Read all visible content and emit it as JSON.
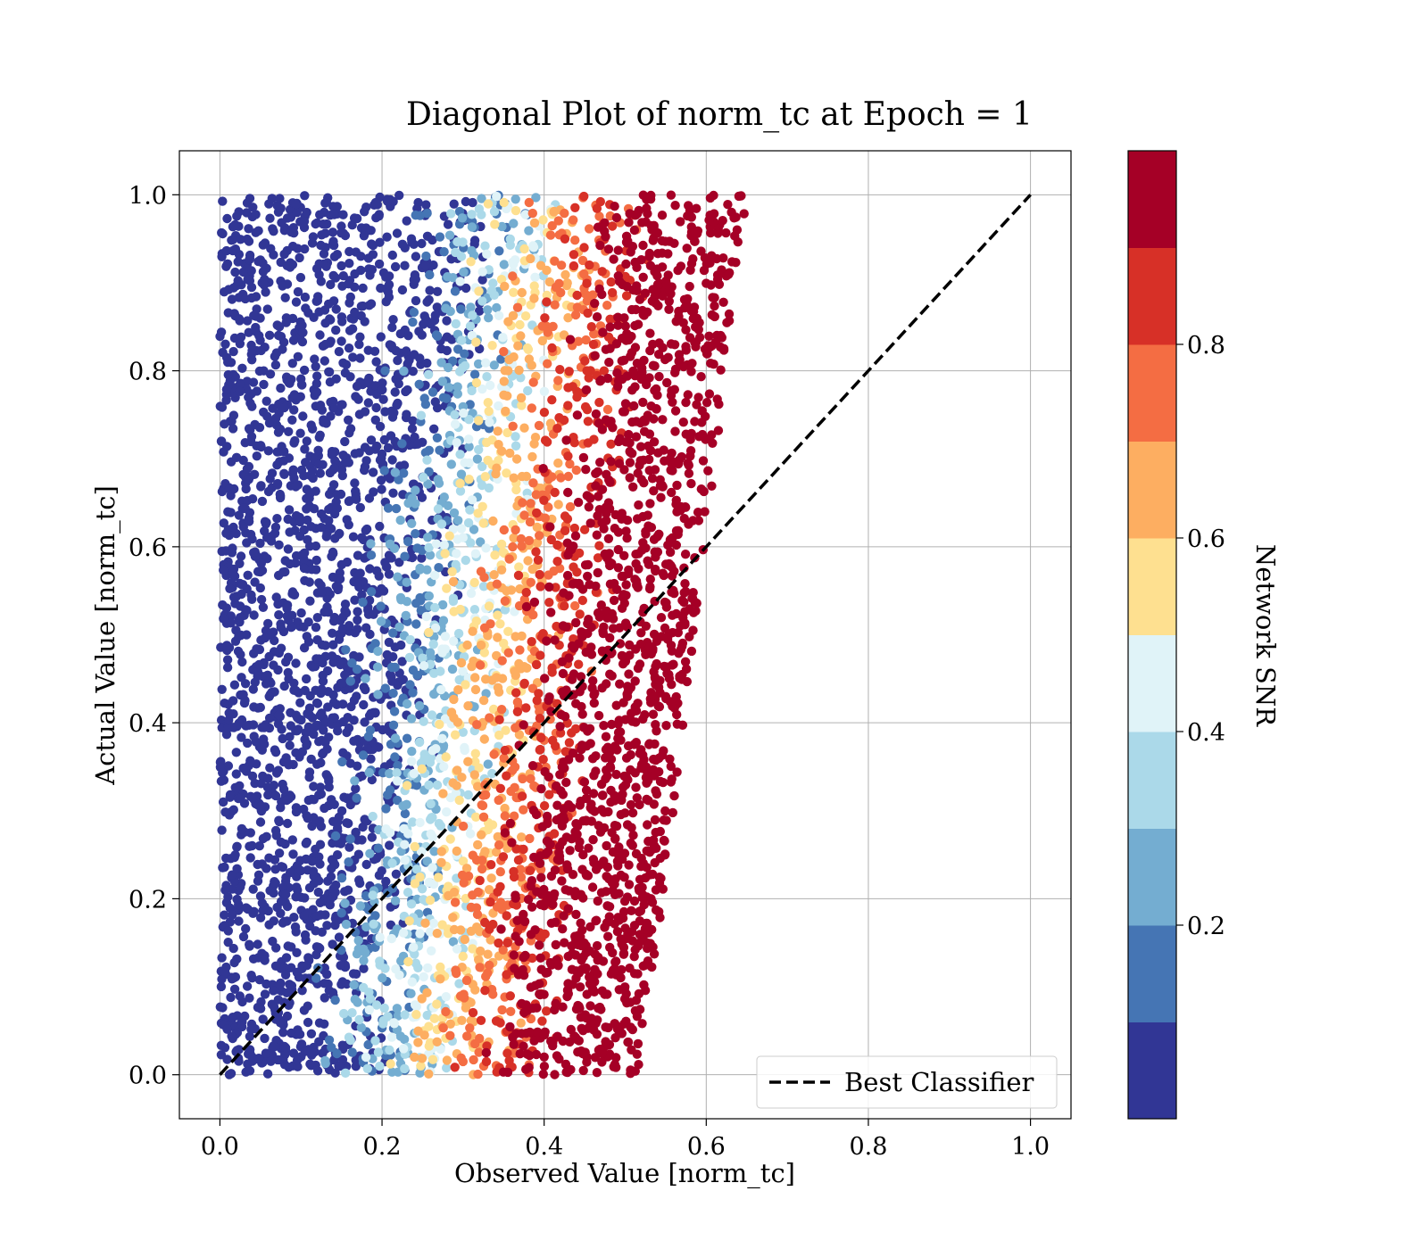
{
  "chart_data": {
    "type": "scatter",
    "title": "Diagonal Plot of norm_tc at Epoch = 1",
    "xlabel": "Observed Value [norm_tc]",
    "ylabel": "Actual Value [norm_tc]",
    "xlim": [
      -0.05,
      1.05
    ],
    "ylim": [
      -0.05,
      1.05
    ],
    "xticks": [
      "0.0",
      "0.2",
      "0.4",
      "0.6",
      "0.8",
      "1.0"
    ],
    "yticks": [
      "0.0",
      "0.2",
      "0.4",
      "0.6",
      "0.8",
      "1.0"
    ],
    "grid": true,
    "legend": {
      "placement": "lower-right",
      "entries": [
        "Best Classifier"
      ]
    },
    "reference_line": {
      "name": "Best Classifier",
      "x": [
        0.0,
        1.0
      ],
      "y": [
        0.0,
        1.0
      ],
      "style": "dashed",
      "color": "#000000"
    },
    "colorbar": {
      "label": "Network SNR",
      "range": [
        0.0,
        1.0
      ],
      "ticks": [
        "0.2",
        "0.4",
        "0.6",
        "0.8"
      ],
      "tick_values": [
        0.2,
        0.4,
        0.6,
        0.8
      ],
      "colors": [
        "#313695",
        "#4575b4",
        "#74add1",
        "#abd9e9",
        "#e0f3f8",
        "#fee090",
        "#fdae61",
        "#f46d43",
        "#d73027",
        "#a50026"
      ],
      "levels": 10
    },
    "scatter_description": {
      "x_range_at_y0": [
        0.0,
        0.52
      ],
      "x_range_at_y1": [
        0.0,
        0.65
      ],
      "high_snr_boundary_at_y0": 0.27,
      "high_snr_boundary_at_y1": 0.4
    }
  }
}
